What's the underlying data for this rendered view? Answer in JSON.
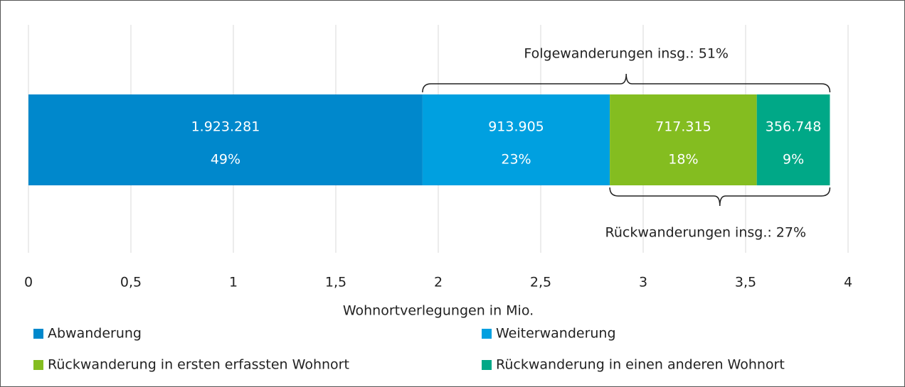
{
  "chart_data": {
    "type": "stacked-bar-horizontal",
    "categories": [
      null
    ],
    "series": [
      {
        "name": "Abwanderung",
        "color": "#0088cc",
        "values": [
          1.923281
        ],
        "value_labels": [
          "1.923.281"
        ],
        "share": {
          "value": 49,
          "label": "49%"
        }
      },
      {
        "name": "Weiterwanderung",
        "color": "#00a0e0",
        "values": [
          0.913905
        ],
        "value_labels": [
          "913.905"
        ],
        "share": {
          "value": 23,
          "label": "23%"
        }
      },
      {
        "name": "Rückwanderung in ersten erfassten Wohnort",
        "color": "#84bd20",
        "values": [
          0.717315
        ],
        "value_labels": [
          "717.315"
        ],
        "share": {
          "value": 18,
          "label": "18%"
        }
      },
      {
        "name": "Rückwanderung in einen anderen Wohnort",
        "color": "#00a887",
        "values": [
          0.356748
        ],
        "value_labels": [
          "356.748"
        ],
        "share": {
          "value": 9,
          "label": "9%"
        }
      }
    ],
    "annotations": [
      "Folgewanderungen insg.: 51%",
      "Rückwanderungen insg.: 27%"
    ],
    "xlabel": "Wohnortverlegungen in Mio.",
    "xlim": [
      0,
      4
    ],
    "xticks": [
      0,
      {
        "value": 0.5,
        "label": "0,5"
      },
      1,
      {
        "value": 1.5,
        "label": "1,5"
      },
      2,
      {
        "value": 2.5,
        "label": "2,5"
      },
      3,
      {
        "value": 3.5,
        "label": "3,5"
      },
      4
    ],
    "grid": true
  }
}
